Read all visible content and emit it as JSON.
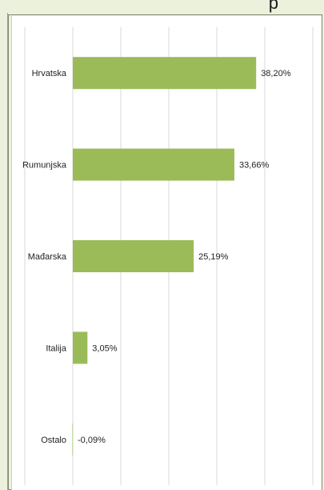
{
  "header": {
    "title_fragment": "p"
  },
  "chart_data": {
    "type": "bar",
    "orientation": "horizontal",
    "categories": [
      "Hrvatska",
      "Rumunjska",
      "Mađarska",
      "Italija",
      "Ostalo"
    ],
    "values": [
      38.2,
      33.66,
      25.19,
      3.05,
      -0.09
    ],
    "data_labels": [
      "38,20%",
      "33,66%",
      "25,19%",
      "3,05%",
      "-0,09%"
    ],
    "value_unit": "%",
    "xlim": [
      -10,
      50
    ],
    "grid": true,
    "colors": {
      "bar": "#9bbb59",
      "grid": "#d9d9d9"
    }
  }
}
